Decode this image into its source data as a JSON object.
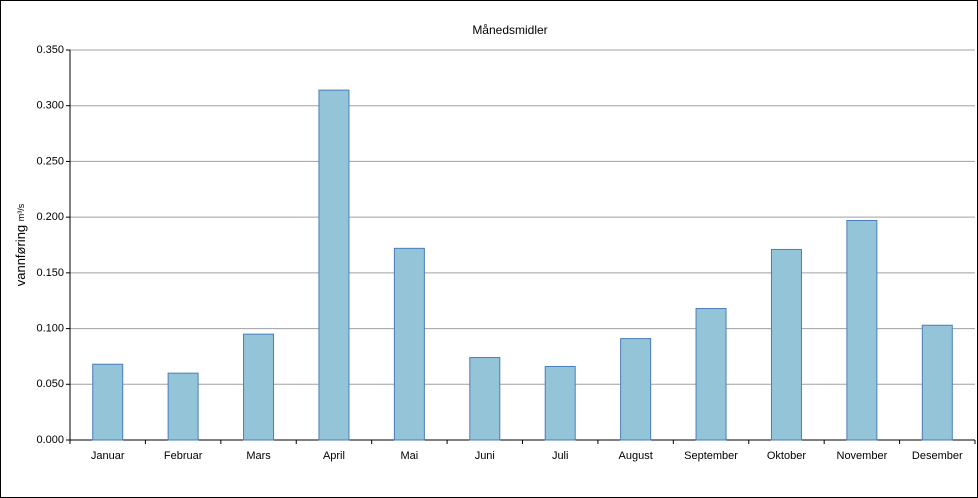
{
  "chart_data": {
    "type": "bar",
    "title": "Månedsmidler",
    "y_label": "vannføring",
    "y_unit": "m³/s",
    "categories": [
      "Januar",
      "Februar",
      "Mars",
      "April",
      "Mai",
      "Juni",
      "Juli",
      "August",
      "September",
      "Oktober",
      "November",
      "Desember"
    ],
    "values": [
      0.068,
      0.06,
      0.095,
      0.314,
      0.172,
      0.074,
      0.066,
      0.091,
      0.118,
      0.171,
      0.197,
      0.103
    ],
    "color": "#93c4d8",
    "edge_color": "#4a7ebb",
    "ylim": [
      0,
      0.35
    ],
    "yticks": [
      {
        "value": 0,
        "label": "0.000"
      },
      {
        "value": 0.05,
        "label": "0.050"
      },
      {
        "value": 0.1,
        "label": "0.100"
      },
      {
        "value": 0.15,
        "label": "0.150"
      },
      {
        "value": 0.2,
        "label": "0.200"
      },
      {
        "value": 0.25,
        "label": "0.250"
      },
      {
        "value": 0.3,
        "label": "0.300"
      },
      {
        "value": 0.35,
        "label": "0.350"
      }
    ],
    "grid": true
  }
}
